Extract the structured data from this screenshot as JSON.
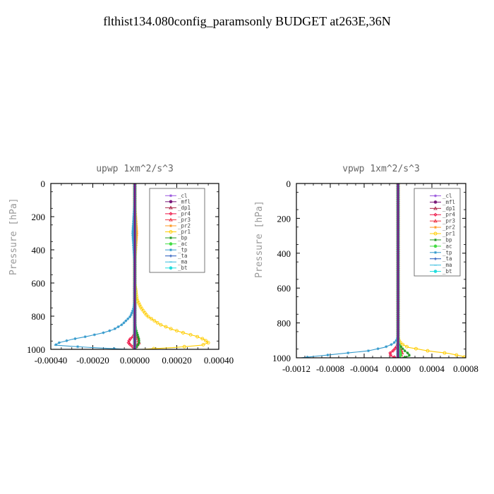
{
  "page_title": "flthist134.080config_paramsonly  BUDGET at263E,36N",
  "legend_entries": [
    {
      "label": "_cl",
      "color": "#9955dd",
      "marker": "star"
    },
    {
      "label": "_mfl",
      "color": "#7a1a7a",
      "marker": "filledcircle"
    },
    {
      "label": "_dp1",
      "color": "#aa2244",
      "marker": "triangle"
    },
    {
      "label": "_pr4",
      "color": "#ee1144",
      "marker": "diamond"
    },
    {
      "label": "_pr3",
      "color": "#ee3344",
      "marker": "triangle"
    },
    {
      "label": "_pr2",
      "color": "#ff9922",
      "marker": "star"
    },
    {
      "label": "_pr1",
      "color": "#ffcc00",
      "marker": "circle"
    },
    {
      "label": "_bp",
      "color": "#229922",
      "marker": "star"
    },
    {
      "label": "_ac",
      "color": "#44dd44",
      "marker": "filledcircle"
    },
    {
      "label": "_tp",
      "color": "#3399cc",
      "marker": "star"
    },
    {
      "label": "_ta",
      "color": "#2255bb",
      "marker": "plus"
    },
    {
      "label": "_ma",
      "color": "#33bbdd",
      "marker": "dash"
    },
    {
      "label": "_bt",
      "color": "#22dddd",
      "marker": "filledcircle"
    }
  ],
  "chart_data": [
    {
      "type": "line",
      "title": "upwp   1xm^2/s^3",
      "ylabel": "Pressure  [hPa]",
      "xlabel": "",
      "xlim": [
        -0.0004,
        0.0004
      ],
      "ylim": [
        1000,
        0
      ],
      "x_ticks": [
        -0.0004,
        -0.0002,
        0.0,
        0.0002,
        0.0004
      ],
      "x_tick_labels": [
        "-0.00040",
        "-0.00020",
        "0.00000",
        "0.00020",
        "0.00040"
      ],
      "y_ticks": [
        0,
        200,
        400,
        600,
        800,
        1000
      ],
      "y_tick_labels": [
        "0",
        "200",
        "400",
        "600",
        "800",
        "1000"
      ],
      "legend_position": "top-right",
      "pressure": [
        0,
        100,
        200,
        300,
        400,
        500,
        600,
        700,
        750,
        800,
        850,
        880,
        900,
        920,
        940,
        960,
        975,
        990,
        1000
      ],
      "series": [
        {
          "name": "_cl",
          "values": [
            0,
            0,
            0,
            0,
            0,
            0,
            0,
            0,
            0,
            0,
            0,
            0,
            0,
            0,
            0,
            0,
            0,
            0,
            0
          ]
        },
        {
          "name": "_mfl",
          "values": [
            0,
            0,
            0,
            0,
            0,
            0,
            0,
            0,
            0,
            0,
            0,
            0,
            0,
            0,
            0,
            0,
            0,
            0,
            0
          ]
        },
        {
          "name": "_dp1",
          "values": [
            0,
            0,
            0,
            0,
            0,
            0,
            0,
            0,
            0,
            0,
            0,
            0,
            0,
            0,
            0,
            0,
            0,
            0,
            0
          ]
        },
        {
          "name": "_pr4",
          "values": [
            0,
            0,
            0,
            0,
            0,
            0,
            0,
            0,
            0,
            0,
            0,
            0,
            0,
            -5e-06,
            -2.5e-05,
            -3e-05,
            -2e-05,
            -5e-06,
            0
          ]
        },
        {
          "name": "_pr3",
          "values": [
            0,
            0,
            0,
            0,
            0,
            0,
            0,
            0,
            0,
            0,
            0,
            0,
            0,
            5e-06,
            1.5e-05,
            2e-05,
            1e-05,
            5e-06,
            0
          ]
        },
        {
          "name": "_pr2",
          "values": [
            0,
            0,
            5e-06,
            1e-05,
            5e-06,
            0,
            0,
            0,
            0,
            0,
            0,
            0,
            0,
            0,
            0,
            0,
            0,
            0,
            0
          ]
        },
        {
          "name": "_pr1",
          "values": [
            0,
            0,
            0,
            0,
            0,
            0,
            0,
            1e-05,
            3e-05,
            6e-05,
            0.00012,
            0.00018,
            0.00023,
            0.00029,
            0.00033,
            0.00035,
            0.00032,
            0.00018,
            3e-05
          ]
        },
        {
          "name": "_bp",
          "values": [
            0,
            0,
            0,
            0,
            0,
            0,
            0,
            0,
            0,
            0,
            2e-06,
            5e-06,
            1e-05,
            1.5e-05,
            2e-05,
            2e-05,
            1.5e-05,
            5e-06,
            0
          ]
        },
        {
          "name": "_ac",
          "values": [
            0,
            0,
            0,
            0,
            0,
            0,
            0,
            0,
            0,
            0,
            0,
            0,
            0,
            0,
            0,
            0,
            0,
            0,
            0
          ]
        },
        {
          "name": "_tp",
          "values": [
            0,
            0,
            -5e-06,
            -1e-05,
            -5e-06,
            0,
            0,
            0,
            -5e-06,
            -2e-05,
            -6e-05,
            -0.0001,
            -0.00015,
            -0.00022,
            -0.0003,
            -0.00036,
            -0.00038,
            -0.0002,
            -3e-05
          ]
        },
        {
          "name": "_ta",
          "values": [
            0,
            0,
            0,
            0,
            0,
            0,
            0,
            0,
            0,
            0,
            0,
            0,
            0,
            0,
            0,
            0,
            0,
            0,
            0
          ]
        },
        {
          "name": "_ma",
          "values": [
            0,
            0,
            0,
            0,
            0,
            0,
            0,
            0,
            0,
            0,
            0,
            0,
            0,
            0,
            0,
            0,
            0,
            0,
            0
          ]
        },
        {
          "name": "_bt",
          "values": [
            0,
            0,
            0,
            0,
            0,
            0,
            0,
            0,
            0,
            0,
            0,
            0,
            0,
            0,
            0,
            0,
            0,
            0,
            0
          ]
        }
      ]
    },
    {
      "type": "line",
      "title": "vpwp   1xm^2/s^3",
      "ylabel": "Pressure  [hPa]",
      "xlabel": "",
      "xlim": [
        -0.0012,
        0.0008
      ],
      "ylim": [
        1000,
        0
      ],
      "x_ticks": [
        -0.0012,
        -0.0008,
        -0.0004,
        0.0,
        0.0004,
        0.0008
      ],
      "x_tick_labels": [
        "-0.0012",
        "-0.0008",
        "-0.0004",
        "0.0000",
        "0.0004",
        "0.0008"
      ],
      "y_ticks": [
        0,
        200,
        400,
        600,
        800,
        1000
      ],
      "y_tick_labels": [
        "0",
        "200",
        "400",
        "600",
        "800",
        "1000"
      ],
      "legend_position": "top-right",
      "pressure": [
        0,
        100,
        200,
        300,
        400,
        500,
        600,
        700,
        750,
        800,
        850,
        880,
        900,
        920,
        940,
        960,
        975,
        990,
        1000
      ],
      "series": [
        {
          "name": "_cl",
          "values": [
            0,
            0,
            0,
            0,
            0,
            0,
            0,
            0,
            0,
            0,
            0,
            0,
            0,
            0,
            0,
            0,
            0,
            0,
            0
          ]
        },
        {
          "name": "_mfl",
          "values": [
            0,
            0,
            0,
            0,
            0,
            0,
            0,
            0,
            0,
            0,
            0,
            0,
            0,
            0,
            0,
            0,
            0,
            0,
            0
          ]
        },
        {
          "name": "_dp1",
          "values": [
            0,
            0,
            0,
            0,
            0,
            0,
            0,
            0,
            0,
            0,
            0,
            0,
            0,
            0,
            0,
            0,
            0,
            0,
            0
          ]
        },
        {
          "name": "_pr4",
          "values": [
            0,
            0,
            0,
            0,
            0,
            0,
            0,
            0,
            0,
            0,
            0,
            0,
            0,
            0,
            -2e-05,
            -6e-05,
            -0.0001,
            -8e-05,
            -2e-05
          ]
        },
        {
          "name": "_pr3",
          "values": [
            0,
            0,
            0,
            0,
            0,
            0,
            0,
            0,
            0,
            0,
            0,
            0,
            0,
            0,
            2e-05,
            4e-05,
            5e-05,
            3e-05,
            0
          ]
        },
        {
          "name": "_pr2",
          "values": [
            0,
            0,
            0,
            0,
            0,
            0,
            0,
            0,
            0,
            0,
            0,
            0,
            0,
            0,
            0,
            0,
            0,
            0,
            0
          ]
        },
        {
          "name": "_pr1",
          "values": [
            0,
            0,
            0,
            0,
            0,
            0,
            0,
            0,
            0,
            0,
            0,
            0,
            1e-05,
            4e-05,
            0.00012,
            0.00035,
            0.0006,
            0.00075,
            0.0008
          ]
        },
        {
          "name": "_bp",
          "values": [
            0,
            0,
            0,
            0,
            0,
            0,
            0,
            0,
            0,
            0,
            0,
            0,
            0,
            1e-05,
            4e-05,
            8e-05,
            0.00012,
            0.00014,
            4e-05
          ]
        },
        {
          "name": "_ac",
          "values": [
            0,
            0,
            0,
            0,
            0,
            0,
            0,
            0,
            0,
            0,
            0,
            0,
            0,
            0,
            1e-05,
            2e-05,
            3e-05,
            3e-05,
            1e-05
          ]
        },
        {
          "name": "_tp",
          "values": [
            0,
            0,
            0,
            0,
            0,
            0,
            0,
            0,
            0,
            0,
            0,
            0,
            -2e-05,
            -6e-05,
            -0.00016,
            -0.00035,
            -0.00065,
            -0.00095,
            -0.00115
          ]
        },
        {
          "name": "_ta",
          "values": [
            0,
            0,
            0,
            0,
            0,
            0,
            0,
            0,
            0,
            0,
            0,
            0,
            0,
            0,
            0,
            0,
            0,
            0,
            0
          ]
        },
        {
          "name": "_ma",
          "values": [
            0,
            0,
            0,
            0,
            0,
            0,
            0,
            0,
            0,
            0,
            0,
            0,
            0,
            0,
            0,
            0,
            0,
            0,
            0
          ]
        },
        {
          "name": "_bt",
          "values": [
            0,
            0,
            0,
            0,
            0,
            0,
            0,
            0,
            0,
            0,
            0,
            0,
            0,
            0,
            0,
            0,
            0,
            0,
            0
          ]
        }
      ]
    }
  ]
}
